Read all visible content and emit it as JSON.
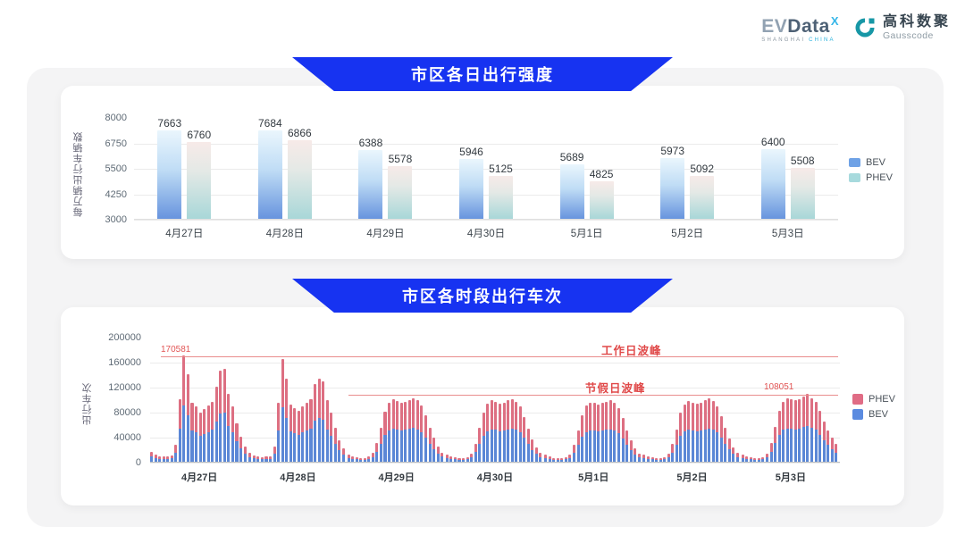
{
  "header": {
    "evdata_logo": {
      "part1": "EV",
      "part2": "Data",
      "sup": "X",
      "subtext_gray": "SHANGHAI",
      "subtext_cyan": "CHINA"
    },
    "gausscode_logo": {
      "cn": "高科数聚",
      "en": "Gausscode",
      "icon": "gausscode-g-icon",
      "icon_color": "#1797a6"
    }
  },
  "colors": {
    "banner_blue": "#1733f1",
    "c1_bev_gradient": [
      "#eaf6fd",
      "#6794de"
    ],
    "c1_phev_gradient": [
      "#f7eae8",
      "#a8d7d8"
    ],
    "c2_bev": "#5b87d6",
    "c2_phev": "#dd6f82",
    "annotation_red": "#e04848"
  },
  "chart_data": [
    {
      "type": "bar",
      "title": "市区各日出行强度",
      "ylabel": "每万辆出行车辆数",
      "ylim": [
        3000,
        8000
      ],
      "yticks": [
        3000,
        4250,
        5500,
        6750,
        8000
      ],
      "grid": true,
      "legend_position": "right",
      "legend": [
        "BEV",
        "PHEV"
      ],
      "categories": [
        "4月27日",
        "4月28日",
        "4月29日",
        "4月30日",
        "5月1日",
        "5月2日",
        "5月3日"
      ],
      "series": [
        {
          "name": "BEV",
          "values": [
            7663,
            7684,
            6388,
            5946,
            5689,
            5973,
            6400
          ]
        },
        {
          "name": "PHEV",
          "values": [
            6760,
            6866,
            5578,
            5125,
            4825,
            5092,
            5508
          ]
        }
      ]
    },
    {
      "type": "bar-stacked",
      "title": "市区各时段出行车次",
      "ylabel": "出行车次",
      "ylim": [
        0,
        200000
      ],
      "yticks": [
        0,
        40000,
        80000,
        120000,
        160000,
        200000
      ],
      "grid": true,
      "legend_position": "right",
      "legend": [
        "PHEV",
        "BEV"
      ],
      "categories": [
        "4月27日",
        "4月28日",
        "4月29日",
        "4月30日",
        "5月1日",
        "5月2日",
        "5月3日"
      ],
      "hours_per_day": 24,
      "bev_share": 0.53,
      "totals_by_day": [
        [
          16000,
          11000,
          9000,
          8000,
          8000,
          10000,
          27000,
          100000,
          170581,
          140000,
          95000,
          88000,
          78000,
          84000,
          90000,
          96000,
          120000,
          146000,
          149000,
          108000,
          88000,
          62000,
          40000,
          24000
        ],
        [
          14000,
          10000,
          8000,
          7000,
          8000,
          9000,
          25000,
          95000,
          164000,
          133000,
          92000,
          86000,
          82000,
          88000,
          94000,
          100000,
          125000,
          133000,
          128000,
          98000,
          78000,
          55000,
          35000,
          21000
        ],
        [
          12000,
          9000,
          7000,
          6000,
          6000,
          8000,
          14000,
          30000,
          55000,
          80000,
          95000,
          100000,
          97000,
          94000,
          96000,
          99000,
          102000,
          98000,
          90000,
          74000,
          55000,
          38000,
          24000,
          15000
        ],
        [
          11000,
          8000,
          7000,
          6000,
          6000,
          7000,
          13000,
          29000,
          54000,
          79000,
          93000,
          98000,
          96000,
          93000,
          95000,
          98000,
          100000,
          96000,
          88000,
          72000,
          53000,
          36000,
          23000,
          14000
        ],
        [
          11000,
          8000,
          6000,
          6000,
          6000,
          7000,
          12000,
          27000,
          50000,
          75000,
          90000,
          95000,
          94000,
          92000,
          94000,
          96000,
          98000,
          94000,
          86000,
          70000,
          50000,
          34000,
          22000,
          13000
        ],
        [
          12000,
          9000,
          7000,
          6000,
          6000,
          7000,
          13000,
          28000,
          52000,
          78000,
          92000,
          97000,
          95000,
          93000,
          95000,
          98000,
          101000,
          97000,
          89000,
          73000,
          54000,
          37000,
          23000,
          14000
        ],
        [
          12000,
          9000,
          7000,
          6000,
          6000,
          7000,
          13000,
          30000,
          56000,
          82000,
          96000,
          101000,
          100000,
          98000,
          100000,
          104000,
          108051,
          102000,
          96000,
          82000,
          65000,
          50000,
          38000,
          28000
        ]
      ],
      "annotations": {
        "workday": {
          "label": "工作日波峰",
          "value": 170581,
          "value_label": "170581"
        },
        "holiday": {
          "label": "节假日波峰",
          "value": 108051,
          "value_label": "108051"
        }
      }
    }
  ]
}
